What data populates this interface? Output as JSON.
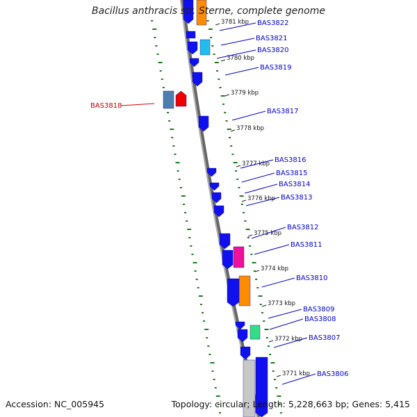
{
  "title": "Bacillus anthracis str. Sterne, complete genome",
  "accession": "Accession: NC_005945",
  "summary": "Topology: circular; Length: 5,228,663 bp; Genes: 5,415",
  "colors": {
    "backbone": "#888888",
    "tick": "#1a7a1a",
    "gene_label": "#0000cc",
    "highlight_label": "#cc0000",
    "blue": "#1010ee",
    "orange": "#ff8c00",
    "cyan": "#22bbee",
    "pink": "#ee1199",
    "green": "#33dd88",
    "gray": "#c8c8c8",
    "steel": "#4c7fb0",
    "red": "#ee0000"
  },
  "kbp_labels": [
    {
      "label": "3781 kbp",
      "kbp": 3781
    },
    {
      "label": "3780 kbp",
      "kbp": 3780
    },
    {
      "label": "3779 kbp",
      "kbp": 3779
    },
    {
      "label": "3778 kbp",
      "kbp": 3778
    },
    {
      "label": "3777 kbp",
      "kbp": 3777
    },
    {
      "label": "3776 kbp",
      "kbp": 3776
    },
    {
      "label": "3775 kbp",
      "kbp": 3775
    },
    {
      "label": "3774 kbp",
      "kbp": 3774
    },
    {
      "label": "3773 kbp",
      "kbp": 3773
    },
    {
      "label": "3772 kbp",
      "kbp": 3772
    },
    {
      "label": "3771 kbp",
      "kbp": 3771
    }
  ],
  "gene_labels": [
    {
      "name": "BAS3822",
      "highlight": false
    },
    {
      "name": "BAS3821",
      "highlight": false
    },
    {
      "name": "BAS3820",
      "highlight": false
    },
    {
      "name": "BAS3819",
      "highlight": false
    },
    {
      "name": "BAS3818",
      "highlight": true
    },
    {
      "name": "BAS3817",
      "highlight": false
    },
    {
      "name": "BAS3816",
      "highlight": false
    },
    {
      "name": "BAS3815",
      "highlight": false
    },
    {
      "name": "BAS3814",
      "highlight": false
    },
    {
      "name": "BAS3813",
      "highlight": false
    },
    {
      "name": "BAS3812",
      "highlight": false
    },
    {
      "name": "BAS3811",
      "highlight": false
    },
    {
      "name": "BAS3810",
      "highlight": false
    },
    {
      "name": "BAS3809",
      "highlight": false
    },
    {
      "name": "BAS3808",
      "highlight": false
    },
    {
      "name": "BAS3807",
      "highlight": false
    },
    {
      "name": "BAS3806",
      "highlight": false
    }
  ],
  "features": [
    {
      "color": "blue",
      "strand": "inner"
    },
    {
      "color": "orange",
      "strand": "outer"
    },
    {
      "color": "blue",
      "strand": "inner"
    },
    {
      "color": "blue",
      "strand": "inner"
    },
    {
      "color": "cyan",
      "strand": "outer"
    },
    {
      "color": "blue",
      "strand": "inner"
    },
    {
      "color": "blue",
      "strand": "inner"
    },
    {
      "color": "blue",
      "strand": "inner"
    },
    {
      "color": "blue",
      "strand": "inner"
    },
    {
      "color": "blue",
      "strand": "inner"
    },
    {
      "color": "blue",
      "strand": "inner"
    },
    {
      "color": "blue",
      "strand": "inner"
    },
    {
      "color": "blue",
      "strand": "inner"
    },
    {
      "color": "pink",
      "strand": "outer"
    },
    {
      "color": "blue",
      "strand": "inner"
    },
    {
      "color": "orange",
      "strand": "outer"
    },
    {
      "color": "blue",
      "strand": "inner"
    },
    {
      "color": "blue",
      "strand": "inner"
    },
    {
      "color": "green",
      "strand": "outer"
    },
    {
      "color": "blue",
      "strand": "inner"
    },
    {
      "color": "blue",
      "strand": "inner"
    },
    {
      "color": "gray",
      "strand": "outer"
    },
    {
      "color": "steel",
      "strand": "far"
    },
    {
      "color": "red",
      "strand": "far"
    }
  ]
}
